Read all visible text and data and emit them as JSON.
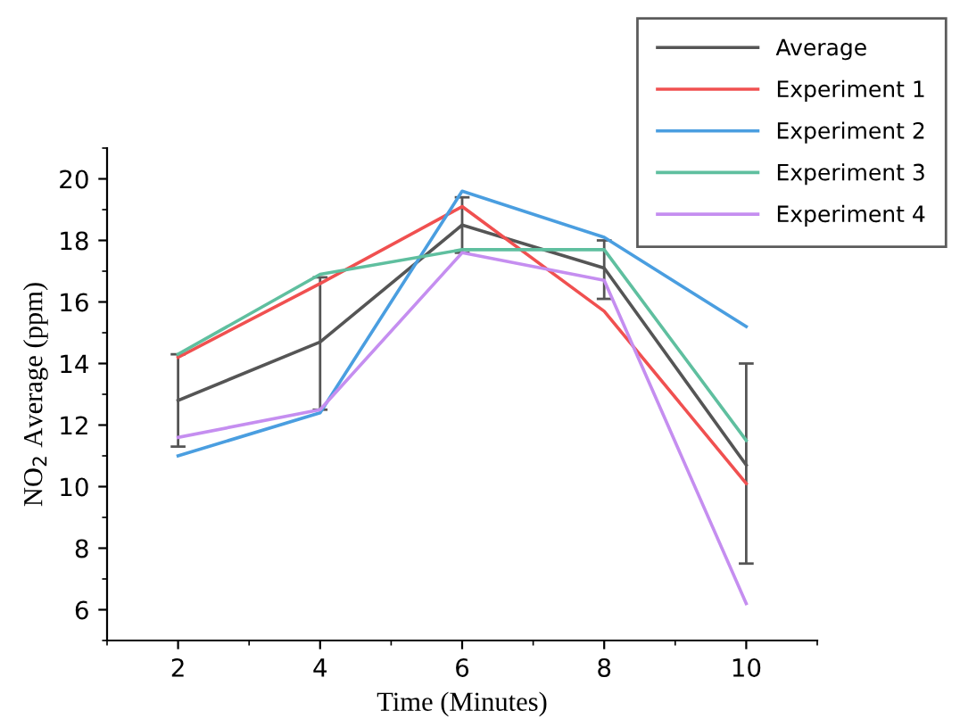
{
  "chart_data": {
    "type": "line",
    "xlabel": "Time (Minutes)",
    "ylabel": "NO$_{2}$ Average (ppm)",
    "x": [
      2,
      4,
      6,
      8,
      10
    ],
    "series": [
      {
        "name": "Average",
        "color": "#555555",
        "values": [
          12.8,
          14.7,
          18.5,
          17.1,
          10.7
        ],
        "errors": [
          [
            11.3,
            14.3
          ],
          [
            12.5,
            16.8
          ],
          [
            17.6,
            19.4
          ],
          [
            16.1,
            18.0
          ],
          [
            7.5,
            14.0
          ]
        ]
      },
      {
        "name": "Experiment 1",
        "color": "#f05050",
        "values": [
          14.2,
          16.6,
          19.1,
          15.7,
          10.1
        ]
      },
      {
        "name": "Experiment 2",
        "color": "#4a9ee0",
        "values": [
          11.0,
          12.4,
          19.6,
          18.1,
          15.2
        ]
      },
      {
        "name": "Experiment 3",
        "color": "#5fbf9f",
        "values": [
          14.3,
          16.9,
          17.7,
          17.7,
          11.5
        ]
      },
      {
        "name": "Experiment 4",
        "color": "#c58ef0",
        "values": [
          11.6,
          12.5,
          17.6,
          16.7,
          6.2
        ]
      }
    ],
    "xlim": [
      1,
      11
    ],
    "xticks": [
      2,
      4,
      6,
      8,
      10
    ],
    "ylim": [
      5,
      21
    ],
    "yticks": [
      6,
      8,
      10,
      12,
      14,
      16,
      18,
      20
    ],
    "grid": false,
    "legend": "top right",
    "marker": "none",
    "line_style": "solid"
  }
}
